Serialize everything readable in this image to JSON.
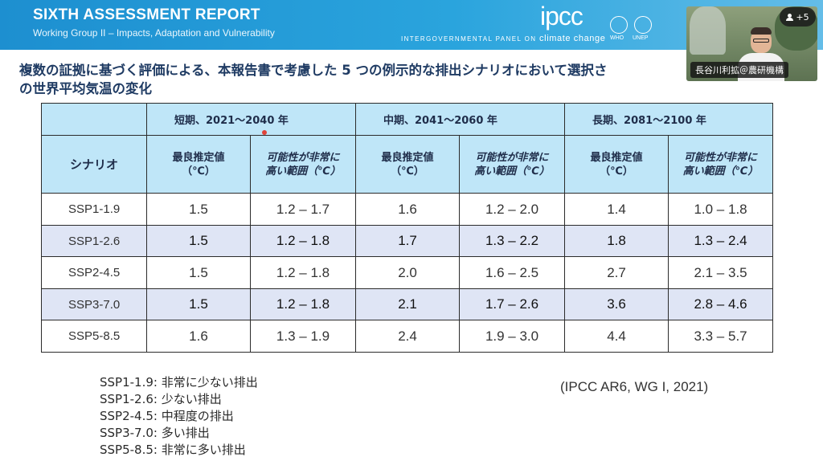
{
  "header": {
    "title": "SIXTH ASSESSMENT REPORT",
    "subtitle": "Working Group II – Impacts, Adaptation and Vulnerability",
    "logo_text": "ipcc",
    "tagline": "INTERGOVERNMENTAL PANEL ON",
    "tagline_cc": "climate change",
    "org1": "WHO",
    "org2": "UNEP"
  },
  "heading": "複数の証拠に基づく評価による、本報告書で考慮した 5 つの例示的な排出シナリオにおいて選択さ",
  "heading_line2": "の世界平均気温の変化",
  "table": {
    "periods": [
      "短期、2021～2040 年",
      "中期、2041～2060 年",
      "長期、2081～2100 年"
    ],
    "scenario_header": "シナリオ",
    "best_estimate_l1": "最良推定値",
    "best_estimate_l2": "（℃）",
    "likely_range_l1": "可能性が非常に",
    "likely_range_l2": "高い範囲（℃）",
    "rows": [
      {
        "scenario": "SSP1-1.9",
        "values": [
          "1.5",
          "1.2 – 1.7",
          "1.6",
          "1.2 – 2.0",
          "1.4",
          "1.0 – 1.8"
        ]
      },
      {
        "scenario": "SSP1-2.6",
        "values": [
          "1.5",
          "1.2 – 1.8",
          "1.7",
          "1.3 – 2.2",
          "1.8",
          "1.3 – 2.4"
        ]
      },
      {
        "scenario": "SSP2-4.5",
        "values": [
          "1.5",
          "1.2 – 1.8",
          "2.0",
          "1.6 – 2.5",
          "2.7",
          "2.1 – 3.5"
        ]
      },
      {
        "scenario": "SSP3-7.0",
        "values": [
          "1.5",
          "1.2 – 1.8",
          "2.1",
          "1.7 – 2.6",
          "3.6",
          "2.8 – 4.6"
        ]
      },
      {
        "scenario": "SSP5-8.5",
        "values": [
          "1.6",
          "1.3 – 1.9",
          "2.4",
          "1.9 – 3.0",
          "4.4",
          "3.3 – 5.7"
        ]
      }
    ]
  },
  "legend": [
    "SSP1-1.9: 非常に少ない排出",
    "SSP1-2.6: 少ない排出",
    "SSP2-4.5: 中程度の排出",
    "SSP3-7.0: 多い排出",
    "SSP5-8.5: 非常に多い排出"
  ],
  "source": "(IPCC AR6, WG I, 2021)",
  "video": {
    "participant_name": "長谷川利拡＠農研機構",
    "participant_count": "+5"
  }
}
